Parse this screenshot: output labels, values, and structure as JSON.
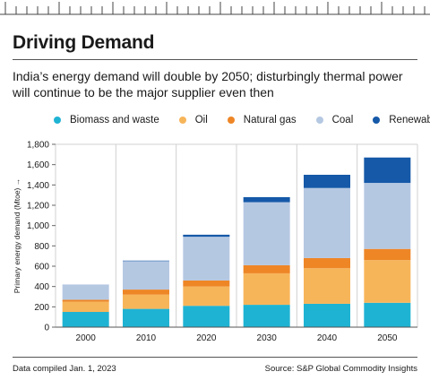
{
  "header": {
    "title": "Driving Demand",
    "subtitle": "India’s energy demand will double by 2050; disturbingly thermal power will continue to be the major supplier even then"
  },
  "legend": [
    {
      "label": "Biomass and waste",
      "color": "#1fb3d3"
    },
    {
      "label": "Oil",
      "color": "#f7b55a"
    },
    {
      "label": "Natural gas",
      "color": "#ee8626"
    },
    {
      "label": "Coal",
      "color": "#b5c8e2"
    },
    {
      "label": "Renewables",
      "color": "#1559a8"
    }
  ],
  "chart_data": {
    "type": "bar",
    "stacked": true,
    "categories": [
      "2000",
      "2010",
      "2020",
      "2030",
      "2040",
      "2050"
    ],
    "series": [
      {
        "name": "Biomass and waste",
        "color": "#1fb3d3",
        "values": [
          150,
          180,
          210,
          220,
          230,
          240
        ]
      },
      {
        "name": "Oil",
        "color": "#f7b55a",
        "values": [
          100,
          140,
          190,
          310,
          350,
          420
        ]
      },
      {
        "name": "Natural gas",
        "color": "#ee8626",
        "values": [
          20,
          50,
          60,
          80,
          100,
          110
        ]
      },
      {
        "name": "Coal",
        "color": "#b5c8e2",
        "values": [
          150,
          280,
          430,
          620,
          690,
          650
        ]
      },
      {
        "name": "Renewables",
        "color": "#1559a8",
        "values": [
          0,
          5,
          20,
          50,
          130,
          250
        ]
      }
    ],
    "xlabel": "",
    "ylabel": "Primary energy demand (Mtoe) →",
    "ylim": [
      0,
      1800
    ],
    "yticks": [
      0,
      200,
      400,
      600,
      800,
      1000,
      1200,
      1400,
      1600,
      1800
    ],
    "ytick_labels": [
      "0",
      "200",
      "400",
      "600",
      "800",
      "1,000",
      "1,200",
      "1,400",
      "1,600",
      "1,800"
    ],
    "grid": "vertical",
    "legend_position": "top"
  },
  "footer": {
    "left": "Data compiled Jan. 1, 2023",
    "right": "Source: S&P Global Commodity Insights"
  }
}
